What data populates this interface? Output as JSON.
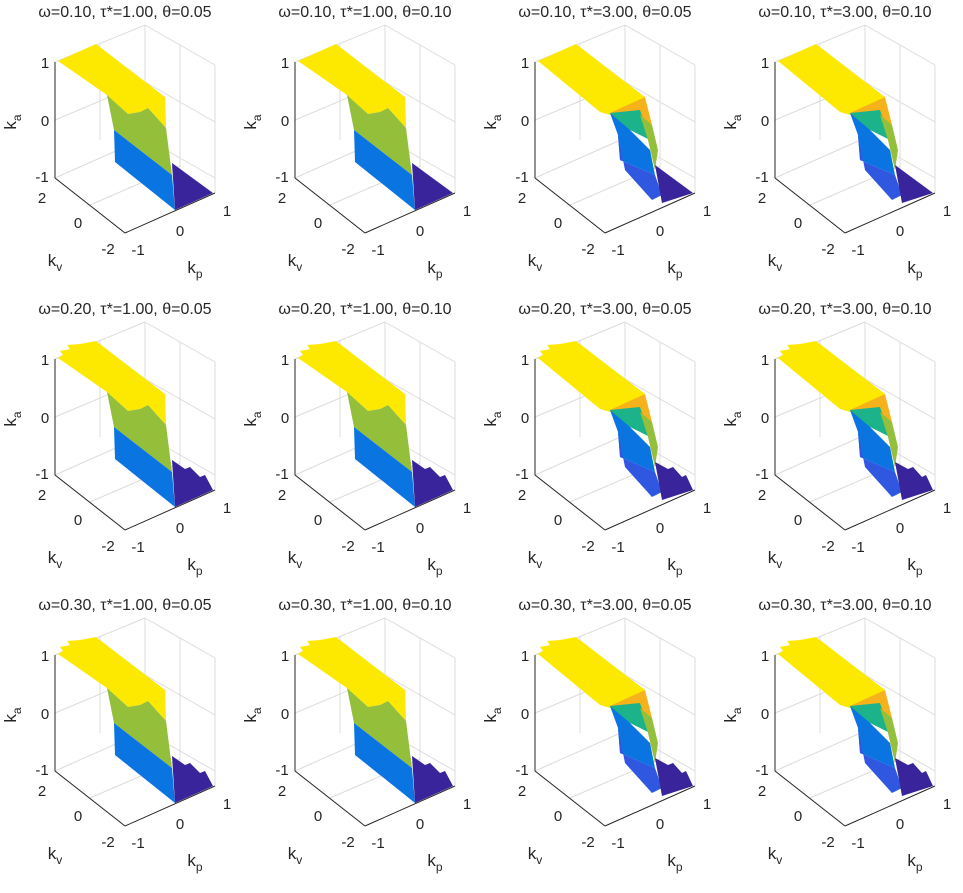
{
  "chart_data": {
    "type": "surface-grid",
    "rows": 3,
    "cols": 4,
    "xlabel": "k_p",
    "ylabel": "k_v",
    "zlabel": "k_a",
    "xlim": [
      -1,
      1
    ],
    "ylim": [
      -2,
      2
    ],
    "zlim": [
      -1,
      1
    ],
    "xticks": [
      "-1",
      "0",
      "1"
    ],
    "yticks": [
      "-2",
      "0",
      "2"
    ],
    "zticks": [
      "-1",
      "0",
      "1"
    ],
    "colors": {
      "yellow": "#fde800",
      "green": "#94bf3a",
      "teal": "#1db38a",
      "blue": "#0a74e0",
      "midblue": "#2f57e0",
      "dark": "#3a249c",
      "orange": "#f5b21a"
    },
    "panels": [
      {
        "title": "ω=0.10, τ*=1.00, θ=0.05",
        "omega": 0.1,
        "tau": 1.0,
        "theta": 0.05
      },
      {
        "title": "ω=0.10, τ*=1.00, θ=0.10",
        "omega": 0.1,
        "tau": 1.0,
        "theta": 0.1
      },
      {
        "title": "ω=0.10, τ*=3.00, θ=0.05",
        "omega": 0.1,
        "tau": 3.0,
        "theta": 0.05
      },
      {
        "title": "ω=0.10, τ*=3.00, θ=0.10",
        "omega": 0.1,
        "tau": 3.0,
        "theta": 0.1
      },
      {
        "title": "ω=0.20, τ*=1.00, θ=0.05",
        "omega": 0.2,
        "tau": 1.0,
        "theta": 0.05
      },
      {
        "title": "ω=0.20, τ*=1.00, θ=0.10",
        "omega": 0.2,
        "tau": 1.0,
        "theta": 0.1
      },
      {
        "title": "ω=0.20, τ*=3.00, θ=0.05",
        "omega": 0.2,
        "tau": 3.0,
        "theta": 0.05
      },
      {
        "title": "ω=0.20, τ*=3.00, θ=0.10",
        "omega": 0.2,
        "tau": 3.0,
        "theta": 0.1
      },
      {
        "title": "ω=0.30, τ*=1.00, θ=0.05",
        "omega": 0.3,
        "tau": 1.0,
        "theta": 0.05
      },
      {
        "title": "ω=0.30, τ*=1.00, θ=0.10",
        "omega": 0.3,
        "tau": 1.0,
        "theta": 0.1
      },
      {
        "title": "ω=0.30, τ*=3.00, θ=0.05",
        "omega": 0.3,
        "tau": 3.0,
        "theta": 0.05
      },
      {
        "title": "ω=0.30, τ*=3.00, θ=0.10",
        "omega": 0.3,
        "tau": 3.0,
        "theta": 0.1
      }
    ]
  }
}
